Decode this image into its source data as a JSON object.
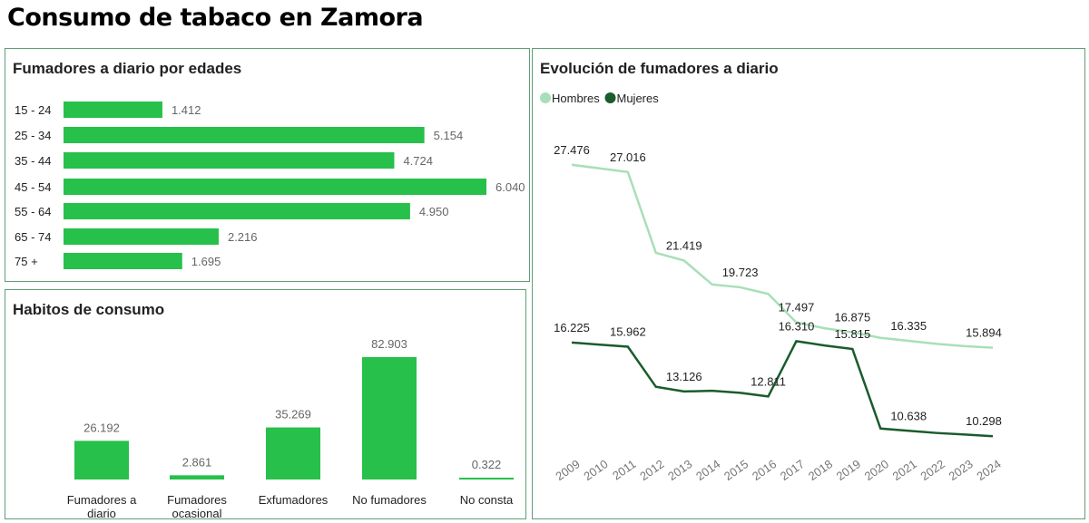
{
  "page_title": "Consumo de tabaco en Zamora",
  "chart_data": [
    {
      "type": "bar",
      "orientation": "horizontal",
      "title": "Fumadores a diario por edades",
      "categories": [
        "15 - 24",
        "25 - 34",
        "35 - 44",
        "45 - 54",
        "55 - 64",
        "65 - 74",
        "75 +"
      ],
      "values": [
        1.412,
        5.154,
        4.724,
        6.04,
        4.95,
        2.216,
        1.695
      ],
      "value_labels": [
        "1.412",
        "5.154",
        "4.724",
        "6.040",
        "4.950",
        "2.216",
        "1.695"
      ],
      "color": "#27c04a"
    },
    {
      "type": "bar",
      "orientation": "vertical",
      "title": "Habitos de consumo",
      "categories": [
        [
          "Fumadores a",
          "diario"
        ],
        [
          "Fumadores",
          "ocasional"
        ],
        [
          "Exfumadores"
        ],
        [
          "No fumadores"
        ],
        [
          "No consta"
        ]
      ],
      "values": [
        26.192,
        2.861,
        35.269,
        82.903,
        0.322
      ],
      "value_labels": [
        "26.192",
        "2.861",
        "35.269",
        "82.903",
        "0.322"
      ],
      "color": "#27c04a"
    },
    {
      "type": "line",
      "title": "Evolución de fumadores a diario",
      "legend_position": "top-left",
      "x": [
        "2009",
        "2010",
        "2011",
        "2012",
        "2013",
        "2014",
        "2015",
        "2016",
        "2017",
        "2018",
        "2019",
        "2020",
        "2021",
        "2022",
        "2023",
        "2024"
      ],
      "series": [
        {
          "name": "Hombres",
          "color": "#a8dfb8",
          "values": [
            27.476,
            27.25,
            27.016,
            21.9,
            21.419,
            19.9,
            19.723,
            19.3,
            17.497,
            17.13,
            16.875,
            16.52,
            16.335,
            16.14,
            16.0,
            15.894
          ],
          "labels": [
            [
              "2009",
              "27.476"
            ],
            [
              "2011",
              "27.016"
            ],
            [
              "2013",
              "21.419"
            ],
            [
              "2015",
              "19.723"
            ],
            [
              "2017",
              "17.497"
            ],
            [
              "2019",
              "16.875"
            ],
            [
              "2021",
              "16.335"
            ],
            [
              "2024",
              "15.894"
            ]
          ]
        },
        {
          "name": "Mujeres",
          "color": "#1a5c2c",
          "values": [
            16.225,
            16.09,
            15.962,
            13.42,
            13.126,
            13.17,
            13.04,
            12.811,
            16.31,
            16.04,
            15.815,
            10.78,
            10.638,
            10.5,
            10.4,
            10.298
          ],
          "labels": [
            [
              "2009",
              "16.225"
            ],
            [
              "2011",
              "15.962"
            ],
            [
              "2013",
              "13.126"
            ],
            [
              "2016",
              "12.811"
            ],
            [
              "2017",
              "16.310"
            ],
            [
              "2019",
              "15.815"
            ],
            [
              "2021",
              "10.638"
            ],
            [
              "2024",
              "10.298"
            ]
          ]
        }
      ]
    }
  ]
}
